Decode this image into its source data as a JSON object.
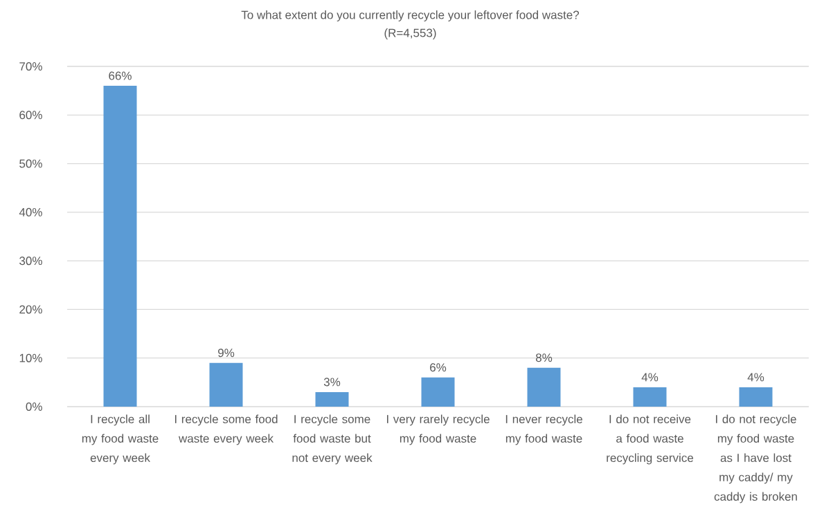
{
  "chart_data": {
    "type": "bar",
    "title": "To what extent do you currently recycle your leftover food waste?",
    "subtitle": "(R=4,553)",
    "categories": [
      "I recycle all my food waste every week",
      "I recycle some food waste every week",
      "I recycle some food waste but not every week",
      "I very rarely recycle my food waste",
      "I never recycle my food waste",
      "I do not receive a food waste recycling service",
      "I do not recycle my food waste as I have lost my caddy/ my caddy is broken"
    ],
    "values": [
      66,
      9,
      3,
      6,
      8,
      4,
      4
    ],
    "value_labels": [
      "66%",
      "9%",
      "3%",
      "6%",
      "8%",
      "4%",
      "4%"
    ],
    "color": "#5b9bd5",
    "ylim": [
      0,
      70
    ],
    "yticks": [
      {
        "value": 0,
        "label": "0%"
      },
      {
        "value": 10,
        "label": "10%"
      },
      {
        "value": 20,
        "label": "20%"
      },
      {
        "value": 30,
        "label": "30%"
      },
      {
        "value": 40,
        "label": "40%"
      },
      {
        "value": 50,
        "label": "50%"
      },
      {
        "value": 60,
        "label": "60%"
      },
      {
        "value": 70,
        "label": "70%"
      }
    ],
    "grid": "y"
  }
}
